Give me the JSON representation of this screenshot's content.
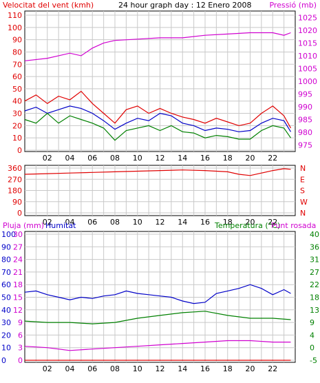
{
  "header": {
    "wind_label": "Velocitat del vent (kmh)",
    "title": "24 hour graph day : 12 Enero 2008",
    "pressure_label": "Pressió (mb)"
  },
  "colors": {
    "red": "#e00000",
    "blue": "#0000c8",
    "green": "#008000",
    "magenta": "#d000d0",
    "frame": "#000000",
    "grid": "#c8c8c8"
  },
  "chart_data": [
    {
      "type": "line",
      "title": "24 hour graph day : 12 Enero 2008",
      "x_ticks": [
        "02",
        "04",
        "06",
        "08",
        "10",
        "12",
        "14",
        "16",
        "18",
        "20",
        "22"
      ],
      "x_range_hours": [
        0,
        24
      ],
      "left_axis": {
        "label": "Velocitat del vent (kmh)",
        "ticks": [
          "0",
          "10",
          "20",
          "30",
          "40",
          "50",
          "60",
          "70",
          "80",
          "90",
          "100",
          "110"
        ],
        "range": [
          0,
          110
        ]
      },
      "right_axis": {
        "label": "Pressió (mb)",
        "ticks": [
          "975",
          "980",
          "985",
          "990",
          "995",
          "1000",
          "1005",
          "1010",
          "1015",
          "1020",
          "1025"
        ],
        "range": [
          972.5,
          1027.5
        ]
      },
      "series": [
        {
          "color": "red",
          "axis": "left",
          "points": [
            [
              0,
              40
            ],
            [
              1,
              45
            ],
            [
              2,
              38
            ],
            [
              3,
              44
            ],
            [
              4,
              41
            ],
            [
              5,
              48
            ],
            [
              6,
              38
            ],
            [
              7,
              30
            ],
            [
              8,
              22
            ],
            [
              9,
              33
            ],
            [
              10,
              36
            ],
            [
              11,
              30
            ],
            [
              12,
              34
            ],
            [
              13,
              30
            ],
            [
              14,
              27
            ],
            [
              15,
              25
            ],
            [
              16,
              22
            ],
            [
              17,
              26
            ],
            [
              18,
              23
            ],
            [
              19,
              20
            ],
            [
              20,
              22
            ],
            [
              21,
              30
            ],
            [
              22,
              36
            ],
            [
              23,
              28
            ],
            [
              23.6,
              18
            ]
          ]
        },
        {
          "color": "blue",
          "axis": "left",
          "points": [
            [
              0,
              32
            ],
            [
              1,
              35
            ],
            [
              2,
              30
            ],
            [
              3,
              33
            ],
            [
              4,
              36
            ],
            [
              5,
              34
            ],
            [
              6,
              30
            ],
            [
              7,
              24
            ],
            [
              8,
              17
            ],
            [
              9,
              22
            ],
            [
              10,
              26
            ],
            [
              11,
              24
            ],
            [
              12,
              30
            ],
            [
              13,
              28
            ],
            [
              14,
              22
            ],
            [
              15,
              20
            ],
            [
              16,
              16
            ],
            [
              17,
              18
            ],
            [
              18,
              17
            ],
            [
              19,
              15
            ],
            [
              20,
              16
            ],
            [
              21,
              22
            ],
            [
              22,
              26
            ],
            [
              23,
              24
            ],
            [
              23.6,
              15
            ]
          ]
        },
        {
          "color": "green",
          "axis": "left",
          "points": [
            [
              0,
              25
            ],
            [
              1,
              22
            ],
            [
              2,
              30
            ],
            [
              3,
              22
            ],
            [
              4,
              28
            ],
            [
              5,
              25
            ],
            [
              6,
              22
            ],
            [
              7,
              18
            ],
            [
              8,
              8
            ],
            [
              9,
              16
            ],
            [
              10,
              18
            ],
            [
              11,
              20
            ],
            [
              12,
              16
            ],
            [
              13,
              20
            ],
            [
              14,
              15
            ],
            [
              15,
              14
            ],
            [
              16,
              10
            ],
            [
              17,
              12
            ],
            [
              18,
              11
            ],
            [
              19,
              9
            ],
            [
              20,
              9
            ],
            [
              21,
              16
            ],
            [
              22,
              20
            ],
            [
              23,
              18
            ],
            [
              23.6,
              10
            ]
          ]
        },
        {
          "color": "magenta",
          "axis": "right",
          "points": [
            [
              0,
              1008
            ],
            [
              2,
              1009
            ],
            [
              3,
              1010
            ],
            [
              4,
              1011
            ],
            [
              5,
              1010
            ],
            [
              6,
              1013
            ],
            [
              7,
              1015
            ],
            [
              8,
              1016
            ],
            [
              10,
              1016.5
            ],
            [
              12,
              1017
            ],
            [
              14,
              1017
            ],
            [
              16,
              1018
            ],
            [
              18,
              1018.5
            ],
            [
              20,
              1019
            ],
            [
              22,
              1019
            ],
            [
              23,
              1018
            ],
            [
              23.6,
              1019
            ]
          ]
        }
      ]
    },
    {
      "type": "line",
      "x_ticks": [
        "02",
        "04",
        "06",
        "08",
        "10",
        "12",
        "14",
        "16",
        "18",
        "20",
        "22"
      ],
      "left_axis": {
        "ticks": [
          "0",
          "90",
          "180",
          "270",
          "360"
        ],
        "range": [
          0,
          360
        ]
      },
      "right_axis": {
        "ticks": [
          "N",
          "W",
          "S",
          "E",
          "N"
        ]
      },
      "series": [
        {
          "color": "red",
          "axis": "left",
          "points": [
            [
              0,
              310
            ],
            [
              2,
              315
            ],
            [
              4,
              320
            ],
            [
              6,
              325
            ],
            [
              8,
              330
            ],
            [
              10,
              335
            ],
            [
              12,
              340
            ],
            [
              14,
              345
            ],
            [
              16,
              340
            ],
            [
              18,
              330
            ],
            [
              19,
              310
            ],
            [
              20,
              300
            ],
            [
              21,
              320
            ],
            [
              22,
              340
            ],
            [
              23,
              355
            ],
            [
              23.6,
              350
            ]
          ]
        }
      ]
    },
    {
      "type": "line",
      "left_labels": {
        "pluja": "Pluja (mm)",
        "humitat": "Humitat"
      },
      "right_labels": {
        "temperatura": "Temperatura (°C)",
        "punt_rosada": "Punt rosada"
      },
      "x_ticks": [
        "02",
        "04",
        "06",
        "08",
        "10",
        "12",
        "14",
        "16",
        "18",
        "20",
        "22"
      ],
      "left_axis_pluja": {
        "ticks": [
          "0",
          "3",
          "6",
          "9",
          "12",
          "15",
          "18",
          "21",
          "24",
          "27",
          "30"
        ],
        "range": [
          0,
          30
        ]
      },
      "left_axis_humitat": {
        "ticks": [
          "0",
          "10",
          "20",
          "30",
          "40",
          "50",
          "60",
          "70",
          "80",
          "90",
          "100"
        ],
        "range": [
          0,
          100
        ]
      },
      "right_axis": {
        "ticks": [
          "-5",
          "0",
          "4",
          "9",
          "13",
          "18",
          "22",
          "27",
          "31",
          "36",
          "40"
        ],
        "range": [
          -5,
          40
        ]
      },
      "series": [
        {
          "color": "blue",
          "axis": "humitat",
          "points": [
            [
              0,
              54
            ],
            [
              1,
              55
            ],
            [
              2,
              52
            ],
            [
              3,
              50
            ],
            [
              4,
              48
            ],
            [
              5,
              50
            ],
            [
              6,
              49
            ],
            [
              7,
              51
            ],
            [
              8,
              52
            ],
            [
              9,
              55
            ],
            [
              10,
              53
            ],
            [
              11,
              52
            ],
            [
              12,
              51
            ],
            [
              13,
              50
            ],
            [
              14,
              47
            ],
            [
              15,
              45
            ],
            [
              16,
              46
            ],
            [
              17,
              53
            ],
            [
              18,
              55
            ],
            [
              19,
              57
            ],
            [
              20,
              60
            ],
            [
              21,
              57
            ],
            [
              22,
              52
            ],
            [
              23,
              56
            ],
            [
              23.6,
              53
            ]
          ]
        },
        {
          "color": "green",
          "axis": "right",
          "points": [
            [
              0,
              9
            ],
            [
              2,
              8.5
            ],
            [
              4,
              8.5
            ],
            [
              6,
              8
            ],
            [
              8,
              8.5
            ],
            [
              10,
              10
            ],
            [
              12,
              11
            ],
            [
              14,
              12
            ],
            [
              16,
              12.5
            ],
            [
              18,
              11
            ],
            [
              20,
              10
            ],
            [
              22,
              10
            ],
            [
              23.6,
              9.5
            ]
          ]
        },
        {
          "color": "magenta",
          "axis": "right",
          "points": [
            [
              0,
              0
            ],
            [
              2,
              -0.5
            ],
            [
              4,
              -1.5
            ],
            [
              6,
              -1
            ],
            [
              8,
              -0.5
            ],
            [
              10,
              0
            ],
            [
              12,
              0.5
            ],
            [
              14,
              1
            ],
            [
              16,
              1.5
            ],
            [
              18,
              2
            ],
            [
              20,
              2
            ],
            [
              22,
              1.5
            ],
            [
              23.6,
              1.5
            ]
          ]
        },
        {
          "color": "red",
          "axis": "pluja",
          "points": [
            [
              0,
              0
            ],
            [
              23.6,
              0
            ]
          ]
        }
      ]
    }
  ]
}
